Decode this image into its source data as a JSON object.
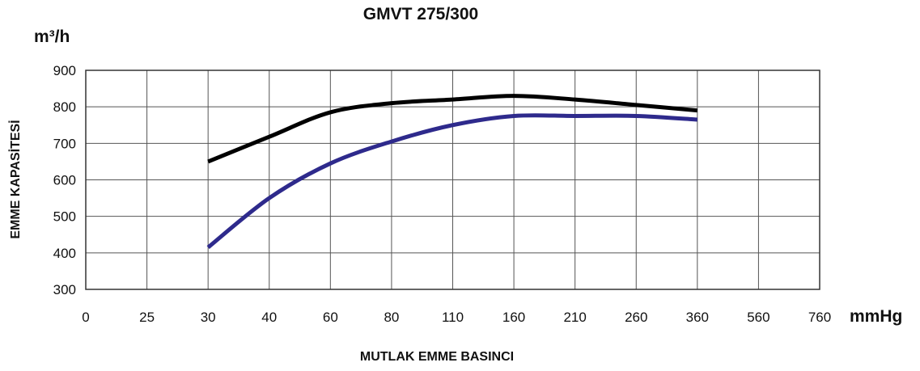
{
  "chart_data": {
    "type": "line",
    "title": "GMVT 275/300",
    "ylabel": "EMME KAPASİTESİ",
    "yunit": "m³/h",
    "xlabel": "MUTLAK EMME BASINCI",
    "xunit": "mmHg",
    "categories": [
      "0",
      "25",
      "30",
      "40",
      "60",
      "80",
      "110",
      "160",
      "210",
      "260",
      "360",
      "560",
      "760"
    ],
    "ylim": [
      300,
      900
    ],
    "yticks": [
      300,
      400,
      500,
      600,
      700,
      800,
      900
    ],
    "grid": true,
    "series": [
      {
        "color": "#000000",
        "points": [
          {
            "x": "30",
            "y": 650
          },
          {
            "x": "40",
            "y": 718
          },
          {
            "x": "60",
            "y": 785
          },
          {
            "x": "80",
            "y": 810
          },
          {
            "x": "110",
            "y": 820
          },
          {
            "x": "160",
            "y": 830
          },
          {
            "x": "210",
            "y": 820
          },
          {
            "x": "260",
            "y": 805
          },
          {
            "x": "360",
            "y": 790
          }
        ]
      },
      {
        "color": "#2e2a8c",
        "points": [
          {
            "x": "30",
            "y": 415
          },
          {
            "x": "40",
            "y": 550
          },
          {
            "x": "60",
            "y": 645
          },
          {
            "x": "80",
            "y": 705
          },
          {
            "x": "110",
            "y": 750
          },
          {
            "x": "160",
            "y": 775
          },
          {
            "x": "210",
            "y": 775
          },
          {
            "x": "260",
            "y": 775
          },
          {
            "x": "360",
            "y": 765
          }
        ]
      }
    ]
  }
}
